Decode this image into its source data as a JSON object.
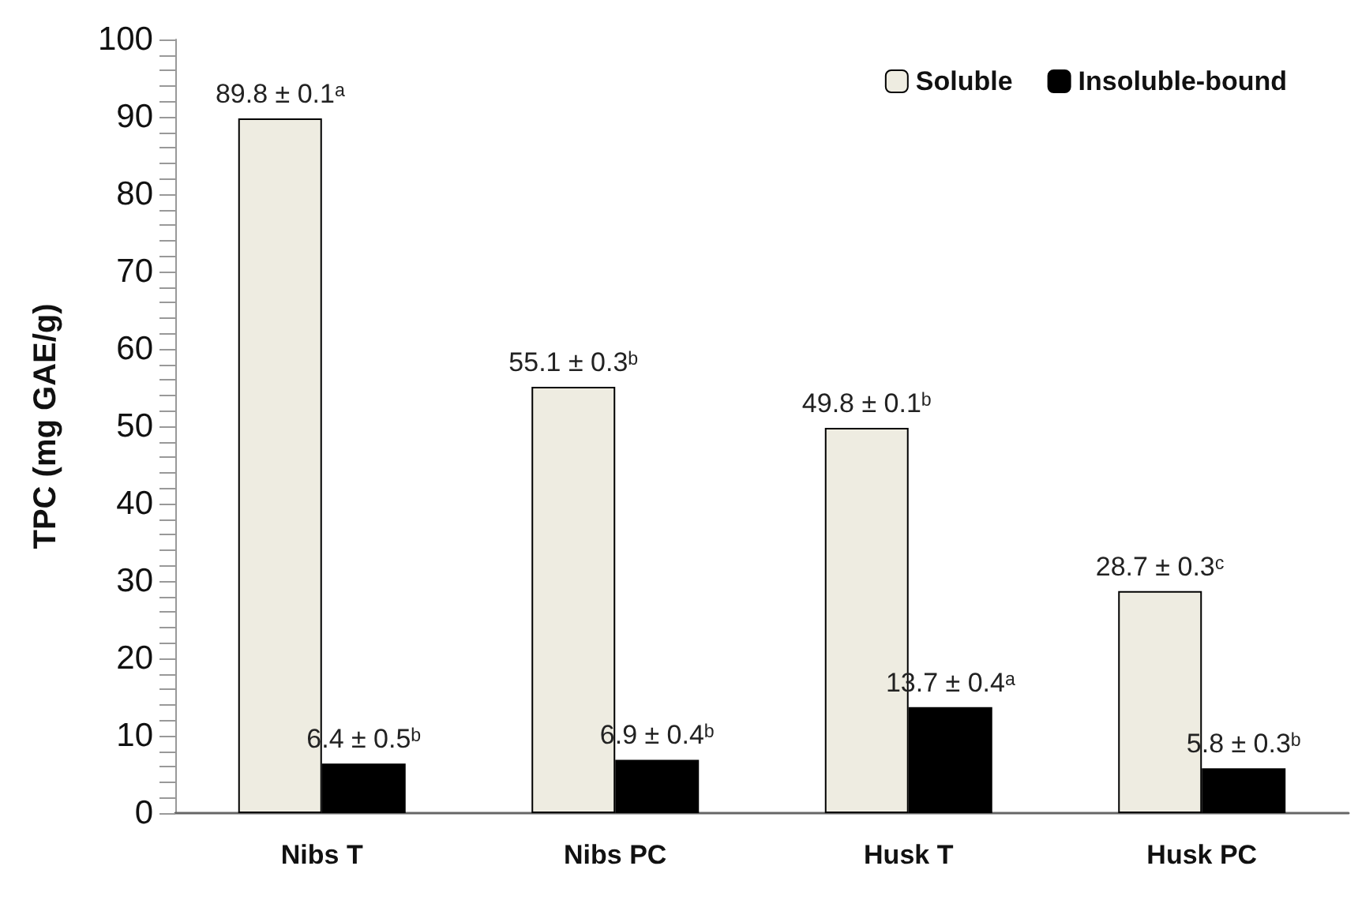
{
  "chart_data": {
    "type": "bar",
    "ylabel": "TPC (mg GAE/g)",
    "categories": [
      "Nibs T",
      "Nibs PC",
      "Husk T",
      "Husk PC"
    ],
    "series": [
      {
        "name": "Soluble",
        "color": "#eeece1",
        "values": [
          89.8,
          55.1,
          49.8,
          28.7
        ],
        "value_labels": [
          "89.8 ± 0.1ᵃ",
          "55.1 ± 0.3ᵇ",
          "49.8 ± 0.1ᵇ",
          "28.7 ± 0.3ᶜ"
        ]
      },
      {
        "name": "Insoluble-bound",
        "color": "#000000",
        "values": [
          6.4,
          6.9,
          13.7,
          5.8
        ],
        "value_labels": [
          "6.4 ± 0.5ᵇ",
          "6.9 ± 0.4ᵇ",
          "13.7 ± 0.4ᵃ",
          "5.8 ± 0.3ᵇ"
        ]
      }
    ],
    "ylim": [
      0,
      100
    ],
    "yticks": [
      0,
      {
        "value": 2,
        "label": null
      },
      {
        "value": 4,
        "label": null
      },
      {
        "value": 6,
        "label": null
      },
      {
        "value": 8,
        "label": null
      },
      10,
      {
        "value": 12,
        "label": null
      },
      {
        "value": 14,
        "label": null
      },
      {
        "value": 16,
        "label": null
      },
      {
        "value": 18,
        "label": null
      },
      20,
      {
        "value": 22,
        "label": null
      },
      {
        "value": 24,
        "label": null
      },
      {
        "value": 26,
        "label": null
      },
      {
        "value": 28,
        "label": null
      },
      30,
      {
        "value": 32,
        "label": null
      },
      {
        "value": 34,
        "label": null
      },
      {
        "value": 36,
        "label": null
      },
      {
        "value": 38,
        "label": null
      },
      40,
      {
        "value": 42,
        "label": null
      },
      {
        "value": 44,
        "label": null
      },
      {
        "value": 46,
        "label": null
      },
      {
        "value": 48,
        "label": null
      },
      50,
      {
        "value": 52,
        "label": null
      },
      {
        "value": 54,
        "label": null
      },
      {
        "value": 56,
        "label": null
      },
      {
        "value": 58,
        "label": null
      },
      60,
      {
        "value": 62,
        "label": null
      },
      {
        "value": 64,
        "label": null
      },
      {
        "value": 66,
        "label": null
      },
      {
        "value": 68,
        "label": null
      },
      70,
      {
        "value": 72,
        "label": null
      },
      {
        "value": 74,
        "label": null
      },
      {
        "value": 76,
        "label": null
      },
      {
        "value": 78,
        "label": null
      },
      80,
      {
        "value": 82,
        "label": null
      },
      {
        "value": 84,
        "label": null
      },
      {
        "value": 86,
        "label": null
      },
      {
        "value": 88,
        "label": null
      },
      90,
      {
        "value": 92,
        "label": null
      },
      {
        "value": 94,
        "label": null
      },
      {
        "value": 96,
        "label": null
      },
      {
        "value": 98,
        "label": null
      },
      100
    ],
    "grid": false,
    "legend": "top right"
  }
}
